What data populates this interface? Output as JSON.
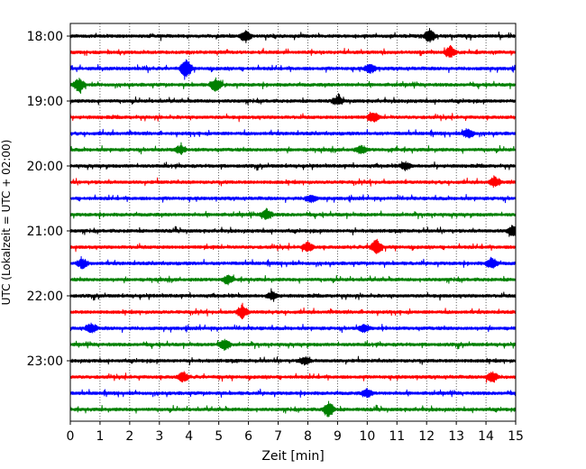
{
  "chart_data": {
    "type": "line",
    "title": "",
    "xlabel": "Zeit  [min]",
    "ylabel": "UTC (Lokalzeit = UTC + 02:00)",
    "xlim": [
      0,
      15
    ],
    "x_ticks": [
      0,
      1,
      2,
      3,
      4,
      5,
      6,
      7,
      8,
      9,
      10,
      11,
      12,
      13,
      14,
      15
    ],
    "x_grid": true,
    "y_grid": false,
    "legend": "none",
    "y_tick_labels": [
      "18:00",
      "19:00",
      "20:00",
      "21:00",
      "22:00",
      "23:00"
    ],
    "trace_interval_min": 15,
    "trace_colors": [
      "#000000",
      "#ff0000",
      "#0000ff",
      "#008000"
    ],
    "traces": [
      {
        "start": "18:00",
        "color": "#000000",
        "events": [
          [
            5.9,
            6
          ],
          [
            12.1,
            7
          ]
        ]
      },
      {
        "start": "18:15",
        "color": "#ff0000",
        "events": [
          [
            12.8,
            6
          ]
        ]
      },
      {
        "start": "18:30",
        "color": "#0000ff",
        "events": [
          [
            3.9,
            10
          ],
          [
            10.1,
            5
          ]
        ]
      },
      {
        "start": "18:45",
        "color": "#008000",
        "events": [
          [
            0.3,
            7
          ],
          [
            4.9,
            7
          ]
        ]
      },
      {
        "start": "19:00",
        "color": "#000000",
        "events": [
          [
            9.0,
            4
          ]
        ]
      },
      {
        "start": "19:15",
        "color": "#ff0000",
        "events": [
          [
            10.2,
            5
          ]
        ]
      },
      {
        "start": "19:30",
        "color": "#0000ff",
        "events": [
          [
            13.4,
            5
          ]
        ]
      },
      {
        "start": "19:45",
        "color": "#008000",
        "events": [
          [
            3.7,
            4
          ],
          [
            9.8,
            4
          ]
        ]
      },
      {
        "start": "20:00",
        "color": "#000000",
        "events": [
          [
            11.3,
            4
          ]
        ]
      },
      {
        "start": "20:15",
        "color": "#ff0000",
        "events": [
          [
            14.3,
            5
          ]
        ]
      },
      {
        "start": "20:30",
        "color": "#0000ff",
        "events": [
          [
            8.1,
            4
          ]
        ]
      },
      {
        "start": "20:45",
        "color": "#008000",
        "events": [
          [
            6.6,
            6
          ]
        ]
      },
      {
        "start": "21:00",
        "color": "#000000",
        "events": [
          [
            14.9,
            6
          ]
        ]
      },
      {
        "start": "21:15",
        "color": "#ff0000",
        "events": [
          [
            8.0,
            5
          ],
          [
            10.3,
            8
          ]
        ]
      },
      {
        "start": "21:30",
        "color": "#0000ff",
        "events": [
          [
            0.4,
            5
          ],
          [
            14.2,
            6
          ]
        ]
      },
      {
        "start": "21:45",
        "color": "#008000",
        "events": [
          [
            5.3,
            4
          ]
        ]
      },
      {
        "start": "22:00",
        "color": "#000000",
        "events": [
          [
            6.8,
            4
          ]
        ]
      },
      {
        "start": "22:15",
        "color": "#ff0000",
        "events": [
          [
            5.8,
            7
          ]
        ]
      },
      {
        "start": "22:30",
        "color": "#0000ff",
        "events": [
          [
            0.7,
            5
          ],
          [
            9.9,
            4
          ]
        ]
      },
      {
        "start": "22:45",
        "color": "#008000",
        "events": [
          [
            5.2,
            6
          ]
        ]
      },
      {
        "start": "23:00",
        "color": "#000000",
        "events": [
          [
            7.9,
            4
          ]
        ]
      },
      {
        "start": "23:15",
        "color": "#ff0000",
        "events": [
          [
            3.8,
            5
          ],
          [
            14.2,
            6
          ]
        ]
      },
      {
        "start": "23:30",
        "color": "#0000ff",
        "events": [
          [
            10.0,
            4
          ]
        ]
      },
      {
        "start": "23:45",
        "color": "#008000",
        "events": [
          [
            8.7,
            8
          ]
        ]
      }
    ]
  }
}
